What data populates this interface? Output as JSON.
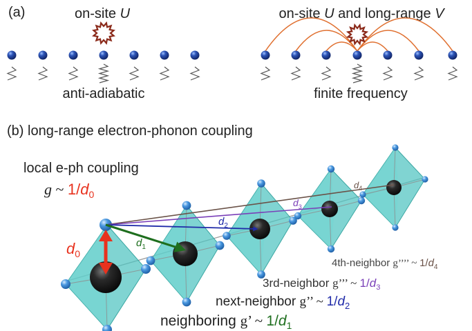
{
  "panel_a": {
    "label": "(a)",
    "left": {
      "title_text": "on-site ",
      "title_var": "U",
      "caption": "anti-adiabatic"
    },
    "right": {
      "title_text_1": "on-site ",
      "title_var_1": "U",
      "title_text_2": " and long-range ",
      "title_var_2": "V",
      "caption": "finite frequency"
    }
  },
  "panel_b": {
    "title": "(b) long-range electron-phonon coupling",
    "local": {
      "label": "local e-ph coupling",
      "g": "g",
      "sim": " ~ ",
      "frac": "1/",
      "d": "d",
      "sub": "0"
    },
    "d_labels": [
      {
        "base": "d",
        "sub": "0"
      },
      {
        "base": "d",
        "sub": "1"
      },
      {
        "base": "d",
        "sub": "2"
      },
      {
        "base": "d",
        "sub": "3"
      },
      {
        "base": "d",
        "sub": "4"
      }
    ],
    "couplings": [
      {
        "name": "neighboring ",
        "g": "g’",
        "sim": " ~ ",
        "frac": "1/",
        "d": "d",
        "sub": "1"
      },
      {
        "name": "next-neighbor ",
        "g": "g’’",
        "sim": " ~ ",
        "frac": "1/",
        "d": "d",
        "sub": "2"
      },
      {
        "name": "3rd-neighbor ",
        "g": "g’’’",
        "sim": " ~ ",
        "frac": "1/",
        "d": "d",
        "sub": "3"
      },
      {
        "name": "4th-neighbor ",
        "g": "g’’’’",
        "sim": " ~ ",
        "frac": "1/",
        "d": "d",
        "sub": "4"
      }
    ]
  },
  "colors": {
    "d0": "#e8321e",
    "d1": "#1e6e1e",
    "d2": "#1f2aa8",
    "d3": "#7a3fb8",
    "d4": "#6a5248",
    "octahedron": "#4fc4c0",
    "oxygen": "#3f8ad8",
    "atom_dark": "#1a1a1a",
    "chain_atom": "#1f3a8c",
    "on_site": "#8b2a1a",
    "long_range": "#e07030",
    "spring": "#555555"
  }
}
